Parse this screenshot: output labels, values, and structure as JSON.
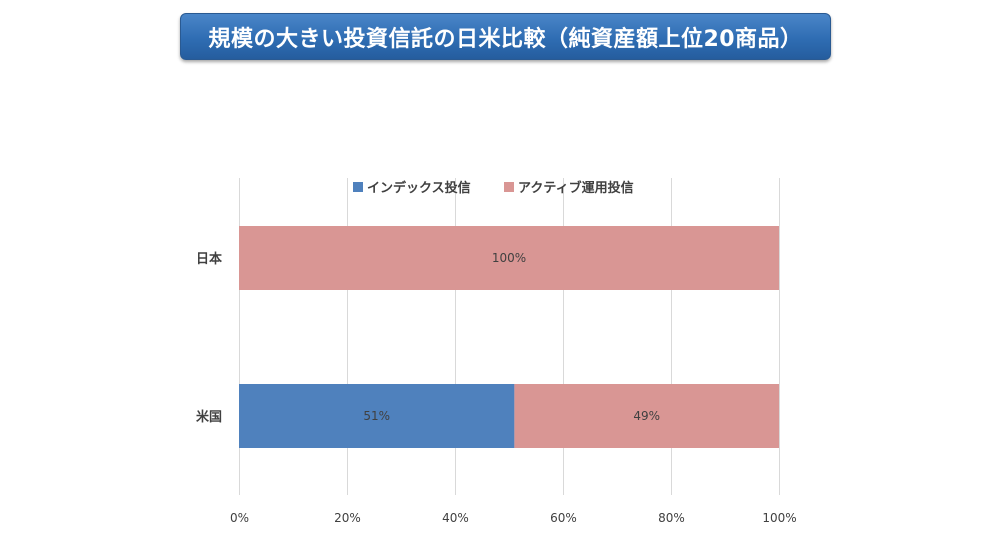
{
  "title": "規模の大きい投資信託の日米比較（純資産額上位20商品）",
  "colors": {
    "index": "#4f81bd",
    "active": "#d99694",
    "grid": "#d9d9d9",
    "text": "#404040",
    "banner": "#2f6db3"
  },
  "chart_data": {
    "type": "bar",
    "orientation": "horizontal",
    "stacked": true,
    "percent_stacked": true,
    "categories": [
      "日本",
      "米国"
    ],
    "series": [
      {
        "name": "インデックス投信",
        "values": [
          0,
          51
        ]
      },
      {
        "name": "アクティブ運用投信",
        "values": [
          100,
          49
        ]
      }
    ],
    "data_labels": [
      [
        "",
        "51%"
      ],
      [
        "100%",
        "49%"
      ]
    ],
    "x_ticks": [
      "0%",
      "20%",
      "40%",
      "60%",
      "80%",
      "100%"
    ],
    "xlim": [
      0,
      100
    ],
    "grid": true,
    "legend_position": "top"
  }
}
